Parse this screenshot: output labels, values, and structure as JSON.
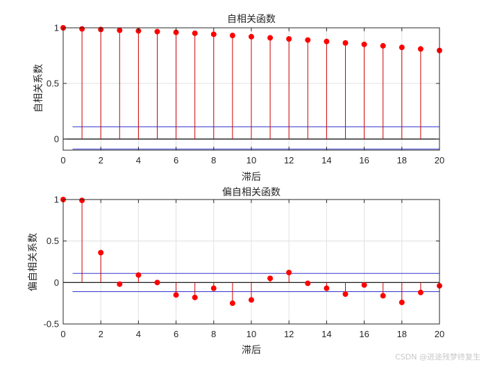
{
  "colors": {
    "stem": "#cc0000",
    "marker": "#ff0000",
    "bound": "#3333cc",
    "zero": "#000000",
    "grid": "#e0e0e0",
    "axis": "#262626"
  },
  "watermark": "CSDN @进途残梦终复生",
  "chart_data": [
    {
      "type": "stem",
      "title": "自相关函数",
      "xlabel": "滞后",
      "ylabel": "自相关系数",
      "xlim": [
        0,
        20
      ],
      "ylim": [
        -0.1,
        1
      ],
      "xticks": [
        0,
        2,
        4,
        6,
        8,
        10,
        12,
        14,
        16,
        18,
        20
      ],
      "yticks": [
        0,
        0.5,
        1
      ],
      "ytick_labels": [
        "0",
        "0.5",
        "1"
      ],
      "grid": true,
      "bounds": [
        0.11,
        -0.09
      ],
      "x": [
        0,
        1,
        2,
        3,
        4,
        5,
        6,
        7,
        8,
        9,
        10,
        11,
        12,
        13,
        14,
        15,
        16,
        17,
        18,
        19,
        20
      ],
      "values": [
        1.0,
        0.99,
        0.985,
        0.978,
        0.972,
        0.966,
        0.959,
        0.951,
        0.942,
        0.931,
        0.92,
        0.91,
        0.9,
        0.89,
        0.877,
        0.864,
        0.851,
        0.838,
        0.824,
        0.81,
        0.796
      ]
    },
    {
      "type": "stem",
      "title": "偏自相关函数",
      "xlabel": "滞后",
      "ylabel": "偏自相关系数",
      "xlim": [
        0,
        20
      ],
      "ylim": [
        -0.5,
        1
      ],
      "xticks": [
        0,
        2,
        4,
        6,
        8,
        10,
        12,
        14,
        16,
        18,
        20
      ],
      "yticks": [
        -0.5,
        0,
        0.5,
        1
      ],
      "ytick_labels": [
        "-0.5",
        "0",
        "0.5",
        "1"
      ],
      "grid": true,
      "bounds": [
        0.11,
        -0.11
      ],
      "x": [
        0,
        1,
        2,
        3,
        4,
        5,
        6,
        7,
        8,
        9,
        10,
        11,
        12,
        13,
        14,
        15,
        16,
        17,
        18,
        19,
        20
      ],
      "values": [
        1.0,
        0.99,
        0.36,
        -0.02,
        0.09,
        0.0,
        -0.15,
        -0.18,
        -0.07,
        -0.25,
        -0.21,
        0.05,
        0.12,
        -0.01,
        -0.07,
        -0.14,
        -0.03,
        -0.16,
        -0.24,
        -0.12,
        -0.04
      ]
    }
  ]
}
